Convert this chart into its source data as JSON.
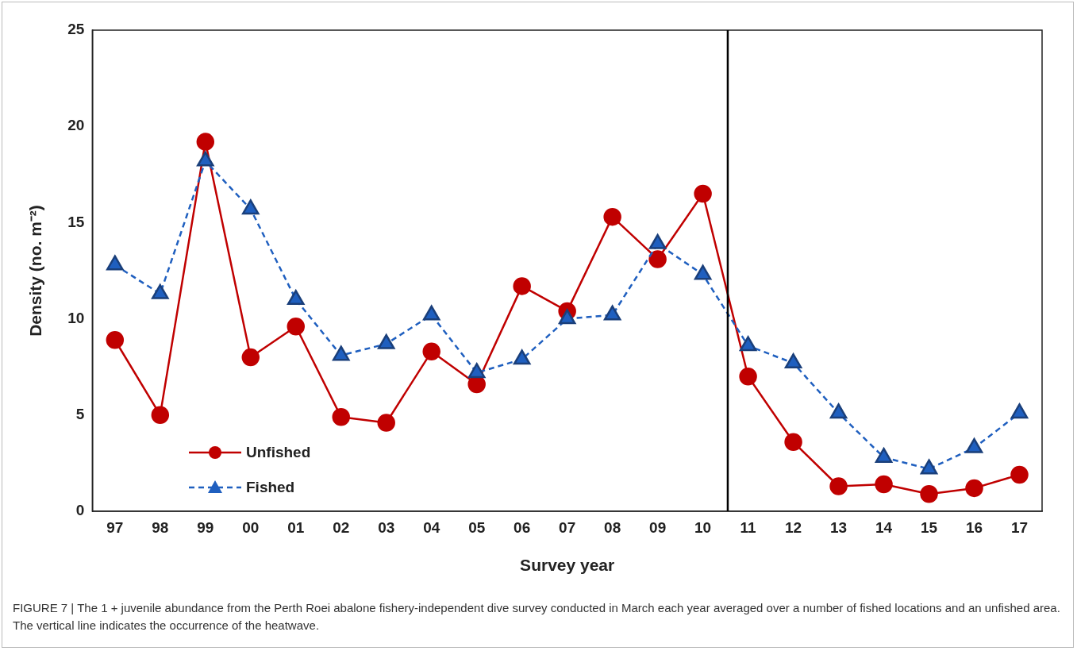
{
  "chart_data": {
    "type": "line",
    "xlabel": "Survey year",
    "ylabel": "Density (no. m⁻²)",
    "x": [
      1997,
      1998,
      1999,
      2000,
      2001,
      2002,
      2003,
      2004,
      2005,
      2006,
      2007,
      2008,
      2009,
      2010,
      2011,
      2012,
      2013,
      2014,
      2015,
      2016,
      2017
    ],
    "series": [
      {
        "name": "Unfished",
        "color": "#c00000",
        "marker": "circle",
        "line_style": "solid",
        "values": [
          8.9,
          5.0,
          19.2,
          8.0,
          9.6,
          4.9,
          4.6,
          8.3,
          6.6,
          11.7,
          10.4,
          15.3,
          13.1,
          16.5,
          7.0,
          3.6,
          1.3,
          1.4,
          0.9,
          1.2,
          1.9
        ]
      },
      {
        "name": "Fished",
        "color": "#1f5fbf",
        "marker": "triangle",
        "line_style": "dashed",
        "values": [
          12.8,
          11.3,
          18.2,
          15.7,
          11.0,
          8.1,
          8.7,
          10.2,
          7.2,
          7.9,
          10.0,
          10.2,
          13.9,
          12.3,
          8.6,
          7.7,
          5.1,
          2.8,
          2.2,
          3.3,
          5.1
        ]
      }
    ],
    "xlim": [
      1996.5,
      2017.5
    ],
    "xticks": [
      {
        "value": 1997,
        "label": "97"
      },
      {
        "value": 1998,
        "label": "98"
      },
      {
        "value": 1999,
        "label": "99"
      },
      {
        "value": 2000,
        "label": "00"
      },
      {
        "value": 2001,
        "label": "01"
      },
      {
        "value": 2002,
        "label": "02"
      },
      {
        "value": 2003,
        "label": "03"
      },
      {
        "value": 2004,
        "label": "04"
      },
      {
        "value": 2005,
        "label": "05"
      },
      {
        "value": 2006,
        "label": "06"
      },
      {
        "value": 2007,
        "label": "07"
      },
      {
        "value": 2008,
        "label": "08"
      },
      {
        "value": 2009,
        "label": "09"
      },
      {
        "value": 2010,
        "label": "10"
      },
      {
        "value": 2011,
        "label": "11"
      },
      {
        "value": 2012,
        "label": "12"
      },
      {
        "value": 2013,
        "label": "13"
      },
      {
        "value": 2014,
        "label": "14"
      },
      {
        "value": 2015,
        "label": "15"
      },
      {
        "value": 2016,
        "label": "16"
      },
      {
        "value": 2017,
        "label": "17"
      }
    ],
    "ylim": [
      0,
      25
    ],
    "yticks": [
      0,
      5,
      10,
      15,
      20,
      25
    ],
    "ref_lines": [
      {
        "axis": "x",
        "value": 2010.55,
        "color": "#000000"
      }
    ],
    "grid": false,
    "legend": "bottom left",
    "annotations": [
      "FIGURE 7 | The 1 + juvenile abundance from the Perth Roei abalone fishery-independent dive survey conducted in March each year averaged over a number of fished locations and an unfished area. The vertical line indicates the occurrence of the heatwave."
    ]
  }
}
